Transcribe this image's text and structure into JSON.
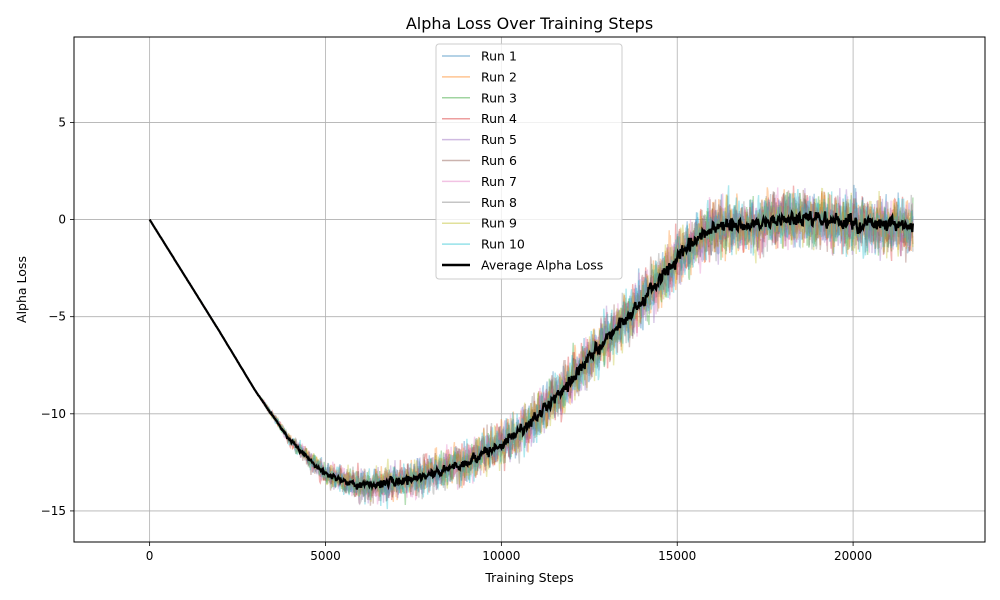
{
  "chart_data": {
    "type": "line",
    "title": "Alpha Loss Over Training Steps",
    "xlabel": "Training Steps",
    "ylabel": "Alpha Loss",
    "xlim": [
      -2150,
      23750
    ],
    "ylim": [
      -16.6,
      9.4
    ],
    "xticks": [
      0,
      5000,
      10000,
      15000,
      20000
    ],
    "xtick_labels": [
      "0",
      "5000",
      "10000",
      "15000",
      "20000"
    ],
    "yticks": [
      -15,
      -10,
      -5,
      0,
      5
    ],
    "ytick_labels": [
      "−15",
      "−10",
      "−5",
      "0",
      "5"
    ],
    "grid": true,
    "legend_position": "upper-center",
    "x_max_step": 21700,
    "series": [
      {
        "name": "Run 1",
        "color": "#1f77b4",
        "alpha": 0.35,
        "noise_amp": 1.9,
        "seed": 11
      },
      {
        "name": "Run 2",
        "color": "#ff7f0e",
        "alpha": 0.35,
        "noise_amp": 2.0,
        "seed": 23
      },
      {
        "name": "Run 3",
        "color": "#2ca02c",
        "alpha": 0.35,
        "noise_amp": 1.9,
        "seed": 37
      },
      {
        "name": "Run 4",
        "color": "#d62728",
        "alpha": 0.35,
        "noise_amp": 2.0,
        "seed": 41
      },
      {
        "name": "Run 5",
        "color": "#9467bd",
        "alpha": 0.35,
        "noise_amp": 1.9,
        "seed": 53
      },
      {
        "name": "Run 6",
        "color": "#8c564b",
        "alpha": 0.35,
        "noise_amp": 2.0,
        "seed": 67
      },
      {
        "name": "Run 7",
        "color": "#e377c2",
        "alpha": 0.35,
        "noise_amp": 1.9,
        "seed": 71
      },
      {
        "name": "Run 8",
        "color": "#7f7f7f",
        "alpha": 0.35,
        "noise_amp": 2.0,
        "seed": 83
      },
      {
        "name": "Run 9",
        "color": "#bcbd22",
        "alpha": 0.35,
        "noise_amp": 2.0,
        "seed": 97
      },
      {
        "name": "Run 10",
        "color": "#17becf",
        "alpha": 0.35,
        "noise_amp": 2.1,
        "seed": 101
      }
    ],
    "average": {
      "name": "Average Alpha Loss",
      "color": "#000000",
      "noise_amp": 0.55,
      "seed": 7
    },
    "trend_points": {
      "x": [
        0,
        1000,
        2000,
        3000,
        4000,
        5000,
        6000,
        7000,
        8000,
        9000,
        10000,
        11000,
        12000,
        13000,
        14000,
        15000,
        16000,
        17000,
        18000,
        19000,
        20000,
        21000,
        21700
      ],
      "y": [
        0,
        -2.9,
        -5.8,
        -8.8,
        -11.4,
        -13.1,
        -13.7,
        -13.5,
        -13.1,
        -12.5,
        -11.6,
        -10.2,
        -8.2,
        -6.1,
        -4.2,
        -2.0,
        -0.4,
        -0.3,
        0.0,
        0.0,
        -0.2,
        -0.3,
        -0.4
      ]
    }
  }
}
